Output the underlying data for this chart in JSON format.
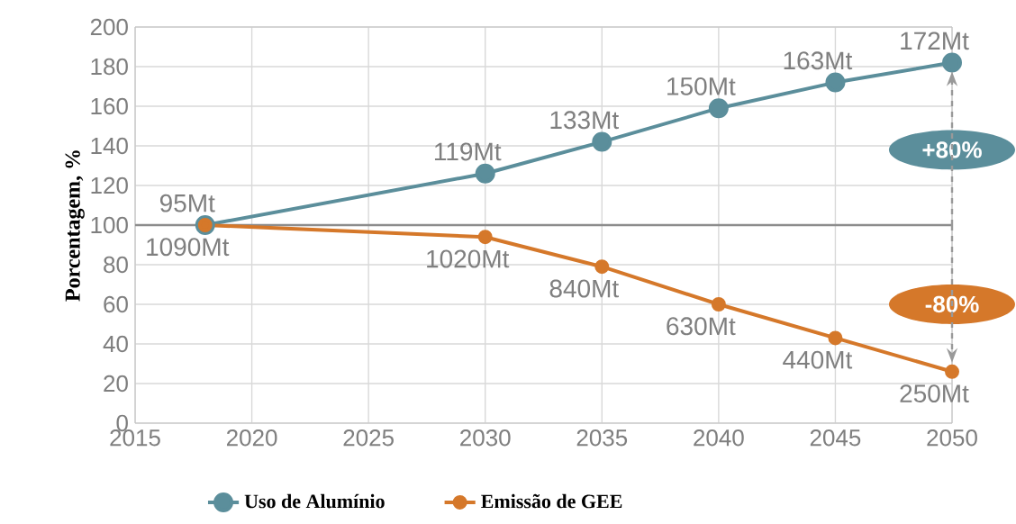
{
  "chart_data": {
    "type": "line",
    "ylabel": "Porcentagem, %",
    "x": [
      2018,
      2030,
      2035,
      2040,
      2045,
      2050
    ],
    "series": [
      {
        "name": "Uso de Alumínio",
        "color": "#5b8e9b",
        "values": [
          100,
          126,
          142,
          159,
          172,
          182
        ]
      },
      {
        "name": "Emissão de GEE",
        "color": "#d5782a",
        "values": [
          100,
          94,
          79,
          60,
          43,
          26
        ]
      }
    ],
    "xlim": [
      2015,
      2050
    ],
    "xticks": [
      2015,
      2020,
      2025,
      2030,
      2035,
      2040,
      2045,
      2050
    ],
    "ylim": [
      0,
      200
    ],
    "yticks": [
      0,
      20,
      40,
      60,
      80,
      100,
      120,
      140,
      160,
      180,
      200
    ],
    "grid": true,
    "legend": "bottom",
    "marker": "circle",
    "line_style": "solid",
    "ref_lines": [
      {
        "axis": "y",
        "value": 100,
        "color": "#8c8c8c"
      }
    ],
    "annotations": [
      {
        "text": "95Mt",
        "x": 2018,
        "y": 100
      },
      {
        "text": "119Mt",
        "x": 2030,
        "y": 126
      },
      {
        "text": "133Mt",
        "x": 2035,
        "y": 142
      },
      {
        "text": "150Mt",
        "x": 2040,
        "y": 159
      },
      {
        "text": "163Mt",
        "x": 2045,
        "y": 172
      },
      {
        "text": "172Mt",
        "x": 2050,
        "y": 182
      },
      {
        "text": "1090Mt",
        "x": 2018,
        "y": 100
      },
      {
        "text": "1020Mt",
        "x": 2030,
        "y": 94
      },
      {
        "text": "840Mt",
        "x": 2035,
        "y": 79
      },
      {
        "text": "630Mt",
        "x": 2040,
        "y": 60
      },
      {
        "text": "440Mt",
        "x": 2045,
        "y": 43
      },
      {
        "text": "250Mt",
        "x": 2050,
        "y": 26
      },
      "+80%",
      "-80%"
    ]
  }
}
